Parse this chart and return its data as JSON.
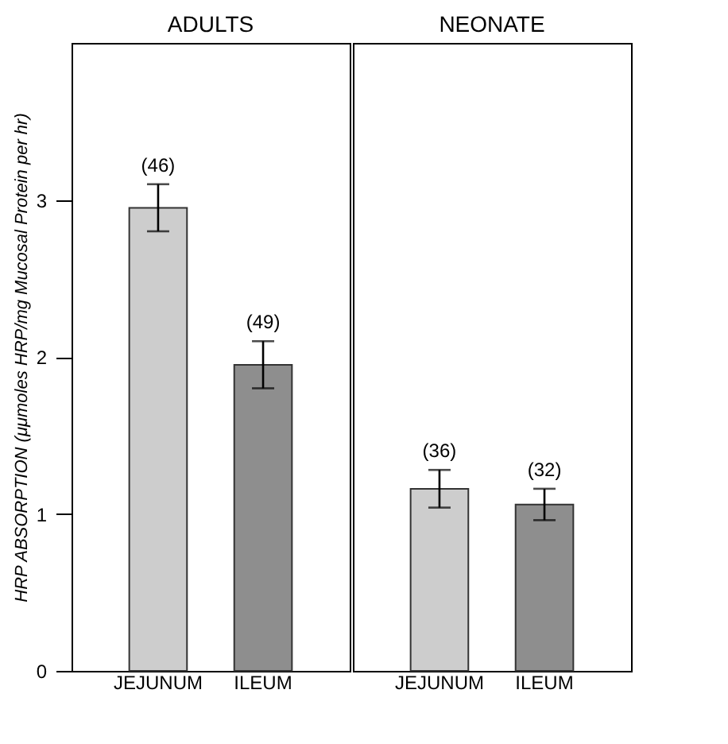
{
  "chart_data": [
    {
      "type": "bar",
      "title": "ADULTS",
      "ylabel": "HRP ABSORPTION (μμmoles HRP/mg Mucosal Protein per hr)",
      "categories": [
        "JEJUNUM",
        "ILEUM"
      ],
      "values": [
        2.95,
        1.95
      ],
      "errors": [
        0.15,
        0.15
      ],
      "colors": [
        "#cdcdcd",
        "#8e8e8e"
      ],
      "ylim": [
        0,
        4
      ],
      "yticks": [
        0,
        1,
        2,
        3
      ],
      "grid": false,
      "annotations": [
        {
          "text": "(46)",
          "x": "JEJUNUM",
          "y": 3.1
        },
        {
          "text": "(49)",
          "x": "ILEUM",
          "y": 2.1
        }
      ]
    },
    {
      "type": "bar",
      "title": "NEONATE",
      "categories": [
        "JEJUNUM",
        "ILEUM"
      ],
      "values": [
        1.16,
        1.06
      ],
      "errors": [
        0.12,
        0.1
      ],
      "colors": [
        "#cdcdcd",
        "#8e8e8e"
      ],
      "ylim": [
        0,
        4
      ],
      "tick_labels": "x",
      "grid": false,
      "annotations": [
        {
          "text": "(36)",
          "x": "JEJUNUM",
          "y": 1.28
        },
        {
          "text": "(32)",
          "x": "ILEUM",
          "y": 1.16
        }
      ]
    }
  ]
}
